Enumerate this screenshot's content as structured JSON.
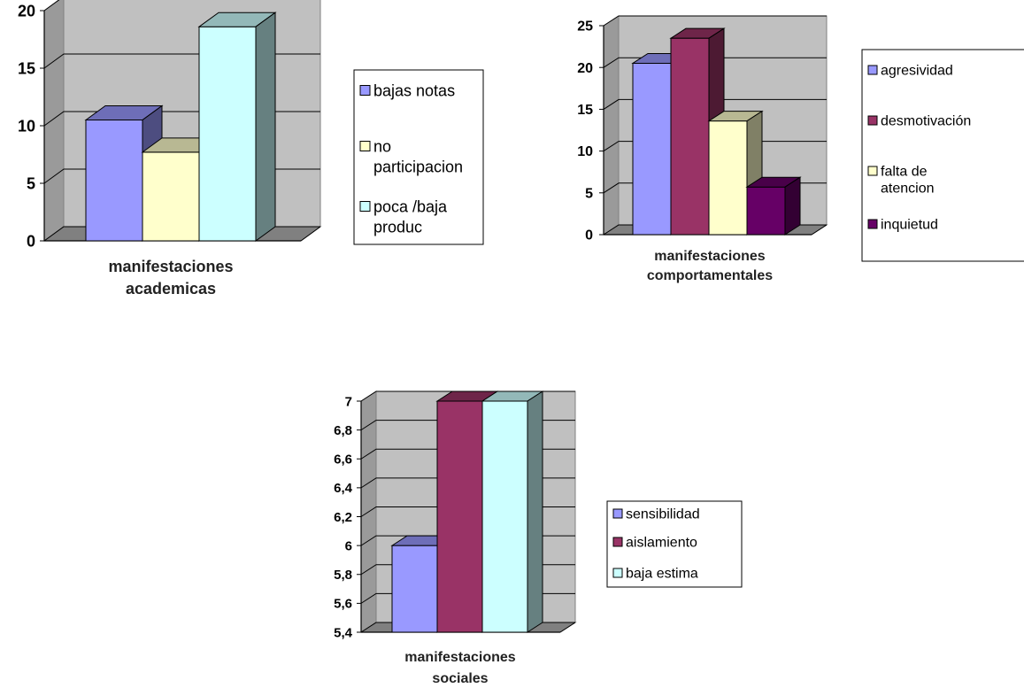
{
  "chart_data": [
    {
      "type": "bar",
      "categories": [
        "manifestaciones academicas"
      ],
      "xlabel": "",
      "ylabel": "",
      "ylim": [
        0,
        20
      ],
      "yticks": [
        "0",
        "5",
        "10",
        "15",
        "20"
      ],
      "ytick_values": [
        0,
        5,
        10,
        15,
        20
      ],
      "grid": true,
      "legend_placement": "right",
      "series": [
        {
          "name": "bajas notas",
          "values": [
            10.5
          ],
          "color": "#9999ff"
        },
        {
          "name": "no participacion",
          "values": [
            7.7
          ],
          "color": "#ffffcc"
        },
        {
          "name": "poca /baja produc",
          "values": [
            18.6
          ],
          "color": "#ccffff"
        }
      ],
      "category_label_lines": [
        "manifestaciones",
        "academicas"
      ],
      "legend_lines": [
        [
          "bajas notas"
        ],
        [
          "no",
          "participacion"
        ],
        [
          "poca /baja",
          "produc"
        ]
      ]
    },
    {
      "type": "bar",
      "categories": [
        "manifestaciones comportamentales"
      ],
      "xlabel": "",
      "ylabel": "",
      "ylim": [
        0,
        25
      ],
      "yticks": [
        "0",
        "5",
        "10",
        "15",
        "20",
        "25"
      ],
      "ytick_values": [
        0,
        5,
        10,
        15,
        20,
        25
      ],
      "grid": true,
      "legend_placement": "right",
      "series": [
        {
          "name": "agresividad",
          "values": [
            20.5
          ],
          "color": "#9999ff"
        },
        {
          "name": "desmotivación",
          "values": [
            23.5
          ],
          "color": "#993366"
        },
        {
          "name": "falta de atencion",
          "values": [
            13.6
          ],
          "color": "#ffffcc"
        },
        {
          "name": "inquietud",
          "values": [
            5.7
          ],
          "color": "#660066"
        }
      ],
      "category_label_lines": [
        "manifestaciones",
        "comportamentales"
      ],
      "legend_lines": [
        [
          "agresividad"
        ],
        [
          "desmotivación"
        ],
        [
          "falta de",
          "atencion"
        ],
        [
          "inquietud"
        ]
      ]
    },
    {
      "type": "bar",
      "categories": [
        "manifestaciones sociales"
      ],
      "xlabel": "",
      "ylabel": "",
      "ylim": [
        5.4,
        7
      ],
      "yticks": [
        "5,4",
        "5,6",
        "5,8",
        "6",
        "6,2",
        "6,4",
        "6,6",
        "6,8",
        "7"
      ],
      "ytick_values": [
        5.4,
        5.6,
        5.8,
        6,
        6.2,
        6.4,
        6.6,
        6.8,
        7
      ],
      "grid": true,
      "legend_placement": "right",
      "series": [
        {
          "name": "sensibilidad",
          "values": [
            6
          ],
          "color": "#9999ff"
        },
        {
          "name": "aislamiento",
          "values": [
            7
          ],
          "color": "#993366"
        },
        {
          "name": "baja estima",
          "values": [
            7
          ],
          "color": "#ccffff"
        }
      ],
      "category_label_lines": [
        "manifestaciones",
        "sociales"
      ],
      "legend_lines": [
        [
          "sensibilidad"
        ],
        [
          "aislamiento"
        ],
        [
          "baja estima"
        ]
      ]
    }
  ]
}
